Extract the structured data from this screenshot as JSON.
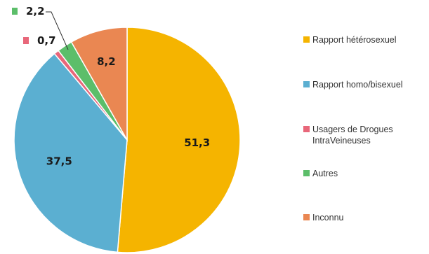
{
  "chart_data": {
    "type": "pie",
    "title": "",
    "legend_position": "right",
    "slices": [
      {
        "label": "Rapport hétérosexuel",
        "value": 51.3,
        "display": "51,3",
        "color": "#F5B400"
      },
      {
        "label": "Rapport homo/bisexuel",
        "value": 37.5,
        "display": "37,5",
        "color": "#5BAFD1"
      },
      {
        "label": "Usagers de Drogues\nIntraVeineuses",
        "value": 0.7,
        "display": "0,7",
        "color": "#E8677A"
      },
      {
        "label": "Autres",
        "value": 2.2,
        "display": "2,2",
        "color": "#5CBE6A"
      },
      {
        "label": "Inconnu",
        "value": 8.2,
        "display": "8,2",
        "color": "#EA8752"
      }
    ]
  }
}
